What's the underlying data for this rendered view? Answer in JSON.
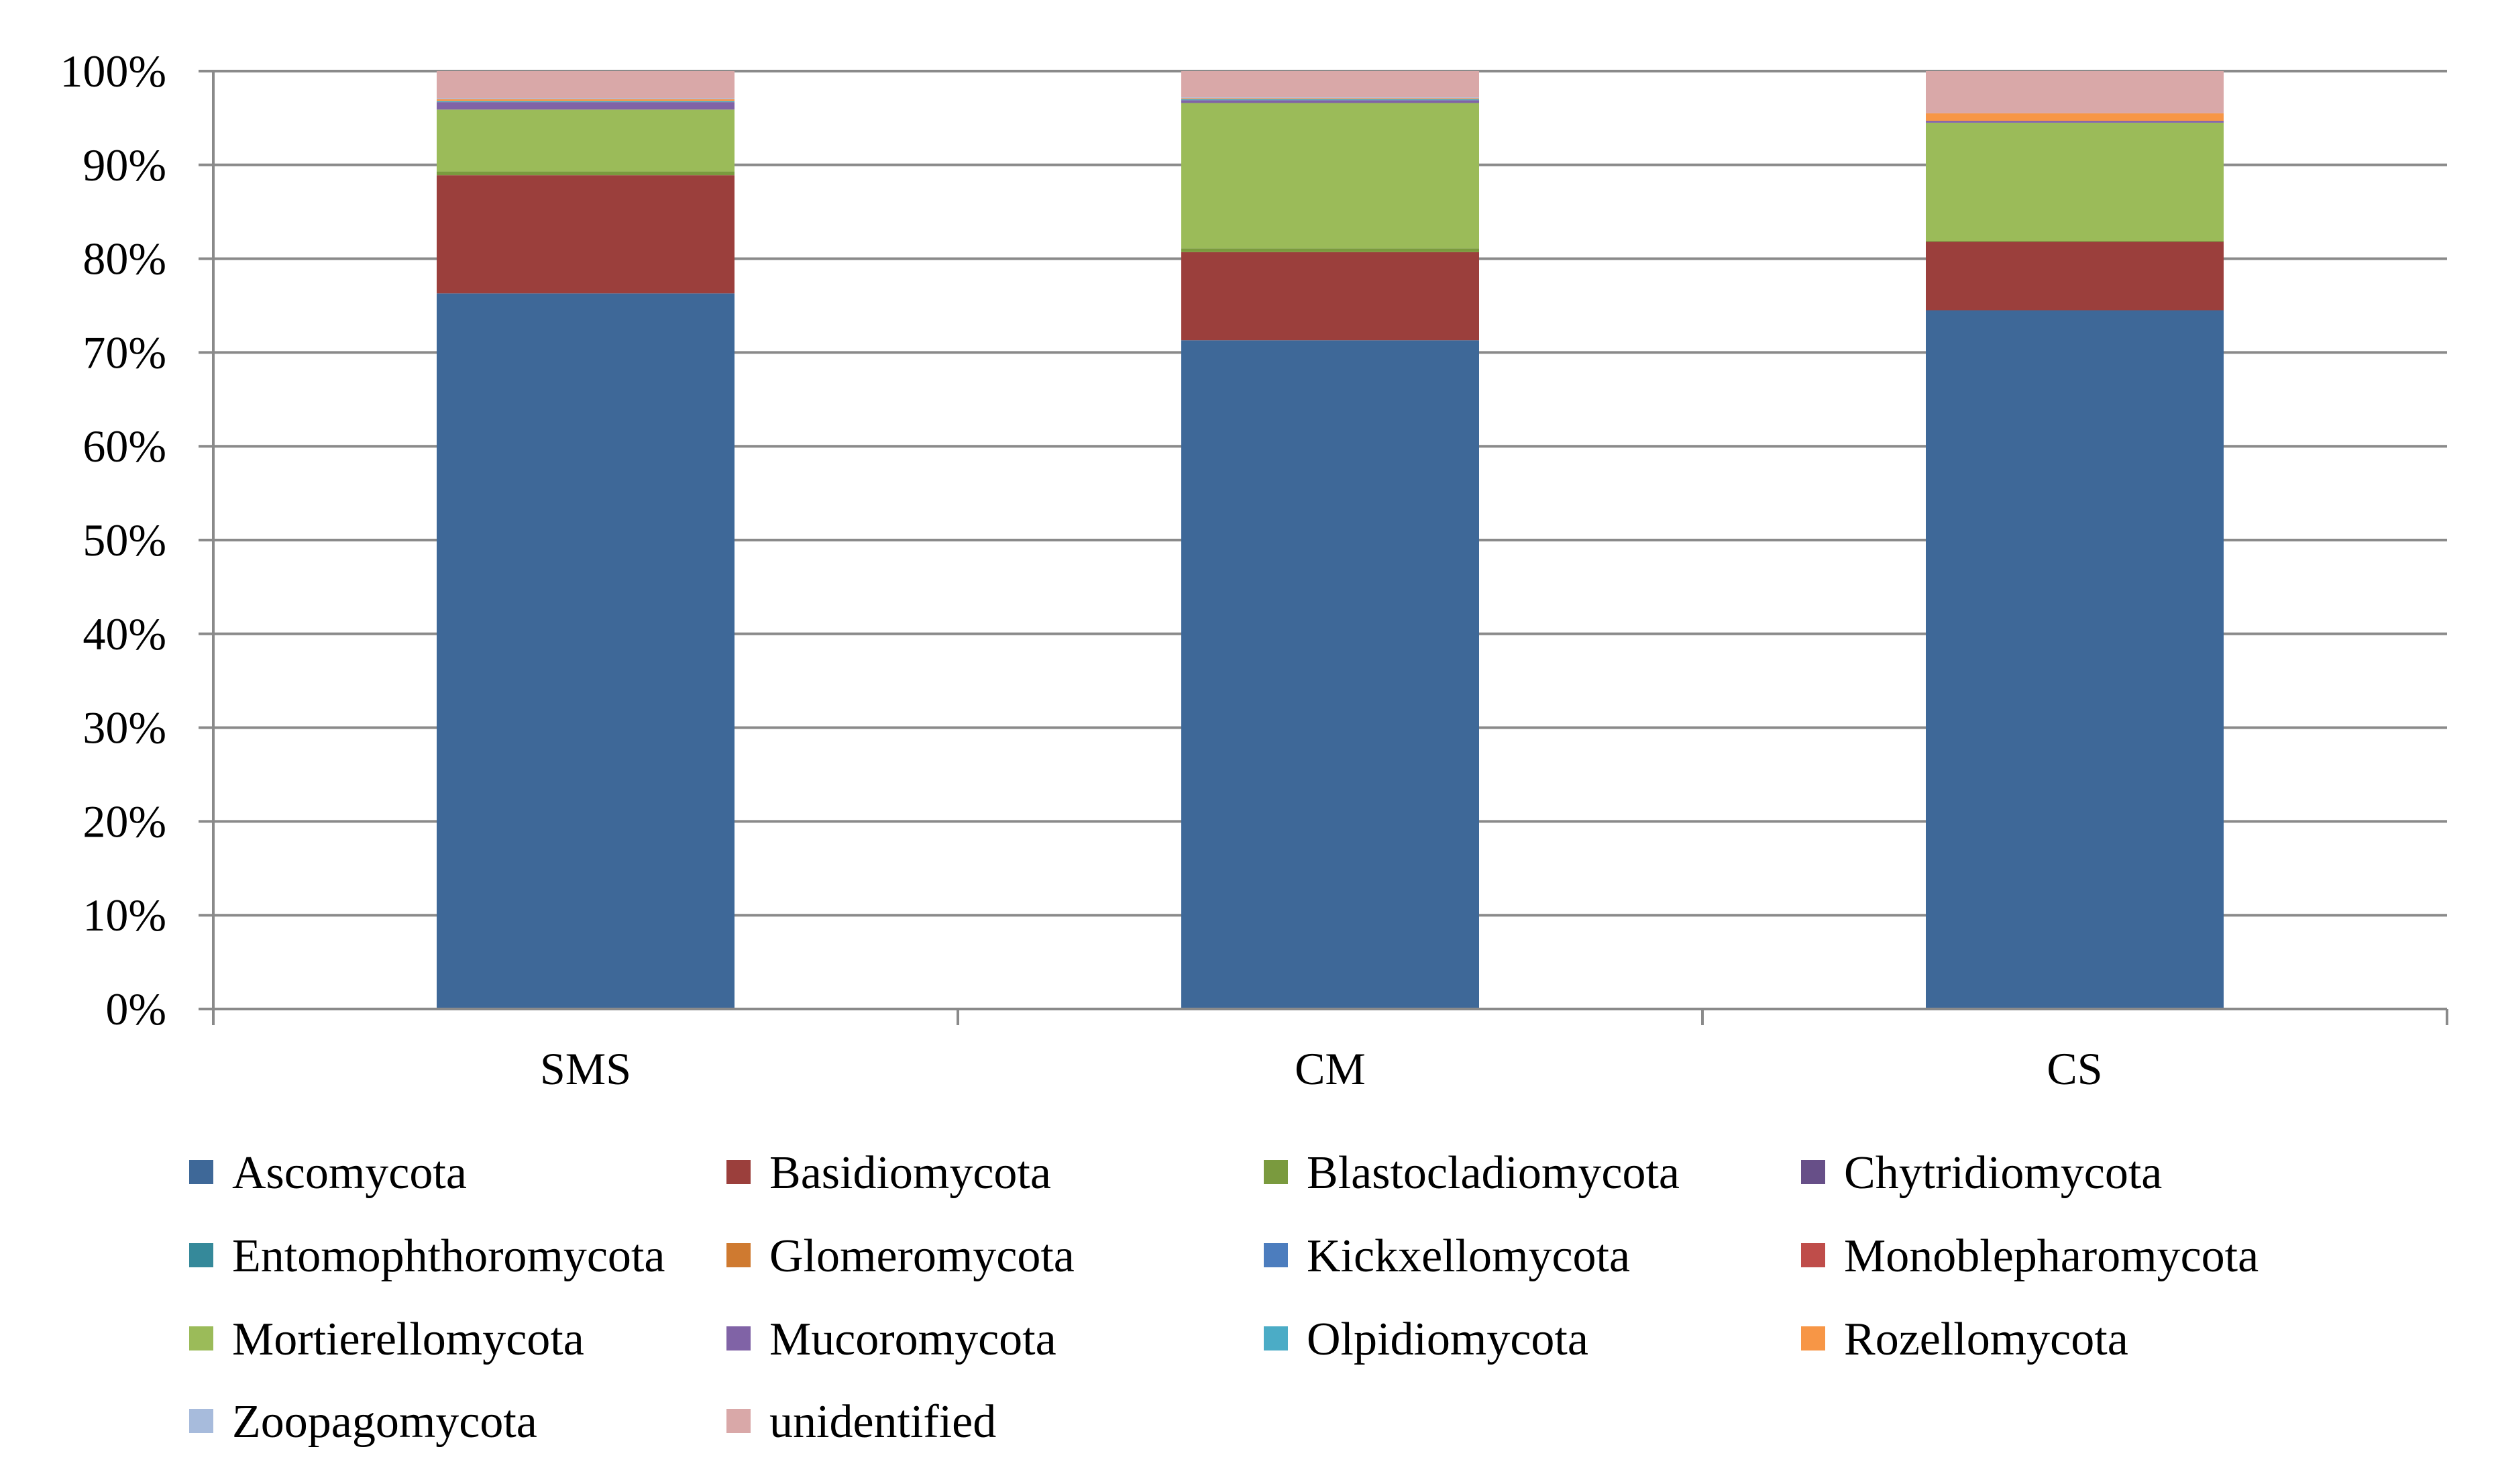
{
  "chart_data": {
    "type": "bar",
    "stacked": true,
    "normalized_percent": true,
    "categories": [
      "SMS",
      "CM",
      "CS"
    ],
    "ylim": [
      0,
      100
    ],
    "yticks": [
      "0%",
      "10%",
      "20%",
      "30%",
      "40%",
      "50%",
      "60%",
      "70%",
      "80%",
      "90%",
      "100%"
    ],
    "grid": true,
    "legend_position": "bottom",
    "series": [
      {
        "name": "Ascomycota",
        "color": "#3E6898",
        "values": [
          76.3,
          71.3,
          74.5
        ]
      },
      {
        "name": "Basidiomycota",
        "color": "#9B3F3C",
        "values": [
          12.6,
          9.4,
          7.3
        ]
      },
      {
        "name": "Blastocladiomycota",
        "color": "#7A9A3E",
        "values": [
          0.4,
          0.4,
          0.1
        ]
      },
      {
        "name": "Chytridiomycota",
        "color": "#674F88",
        "values": [
          0.0,
          0.0,
          0.0
        ]
      },
      {
        "name": "Entomophthoromycota",
        "color": "#35899A",
        "values": [
          0.0,
          0.0,
          0.0
        ]
      },
      {
        "name": "Glomeromycota",
        "color": "#CF7A30",
        "values": [
          0.0,
          0.0,
          0.0
        ]
      },
      {
        "name": "Kickxellomycota",
        "color": "#4C7DBE",
        "values": [
          0.0,
          0.0,
          0.0
        ]
      },
      {
        "name": "Monoblepharomycota",
        "color": "#BF4D4A",
        "values": [
          0.0,
          0.0,
          0.0
        ]
      },
      {
        "name": "Mortierellomycota",
        "color": "#9BBB59",
        "values": [
          6.6,
          15.5,
          12.6
        ]
      },
      {
        "name": "Mucoromycota",
        "color": "#8063A6",
        "values": [
          0.8,
          0.3,
          0.2
        ]
      },
      {
        "name": "Olpidiomycota",
        "color": "#4BACC6",
        "values": [
          0.1,
          0.1,
          0.0
        ]
      },
      {
        "name": "Rozellomycota",
        "color": "#F79646",
        "values": [
          0.2,
          0.1,
          0.8
        ]
      },
      {
        "name": "Zoopagomycota",
        "color": "#A7BBDC",
        "values": [
          0.1,
          0.1,
          0.0
        ]
      },
      {
        "name": "unidentified",
        "color": "#D9A8A8",
        "values": [
          2.9,
          2.8,
          4.5
        ]
      }
    ]
  }
}
